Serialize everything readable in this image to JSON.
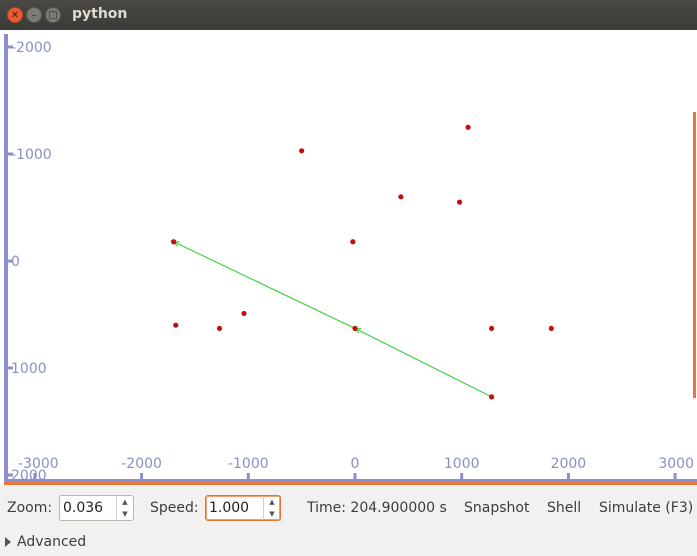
{
  "window": {
    "title": "python"
  },
  "plot": {
    "x_ticks": [
      "-3000",
      "-2000",
      "-1000",
      "0",
      "1000",
      "2000",
      "3000"
    ],
    "y_ticks": [
      "-2000",
      "-1000",
      "0",
      "1000",
      "2000"
    ],
    "colors": {
      "axis": "#8c8ed0",
      "points": "#c01010",
      "trajectory": "#44d244",
      "edge_marker": "#e87838"
    }
  },
  "chart_data": {
    "type": "scatter",
    "xlim": [
      -3300,
      3150
    ],
    "ylim": [
      -2000,
      2000
    ],
    "y_inverted": true,
    "points": [
      {
        "x": 1060,
        "y": -1250
      },
      {
        "x": -500,
        "y": -1030
      },
      {
        "x": 430,
        "y": -600
      },
      {
        "x": 980,
        "y": -550
      },
      {
        "x": -1700,
        "y": -180
      },
      {
        "x": -20,
        "y": -180
      },
      {
        "x": -1680,
        "y": 600
      },
      {
        "x": -1270,
        "y": 630
      },
      {
        "x": -1040,
        "y": 490
      },
      {
        "x": 0,
        "y": 630
      },
      {
        "x": 1280,
        "y": 630
      },
      {
        "x": 1840,
        "y": 630
      },
      {
        "x": 1280,
        "y": 1270
      }
    ],
    "trajectory": [
      {
        "x": 1280,
        "y": 1270
      },
      {
        "x": 0,
        "y": 630
      },
      {
        "x": -1700,
        "y": -180
      }
    ]
  },
  "controls": {
    "zoom_label": "Zoom:",
    "zoom_value": "0.036",
    "speed_label": "Speed:",
    "speed_value": "1.000",
    "time_text": "Time: 204.900000 s",
    "snapshot_label": "Snapshot",
    "shell_label": "Shell",
    "simulate_label": "Simulate (F3)",
    "advanced_label": "Advanced"
  }
}
